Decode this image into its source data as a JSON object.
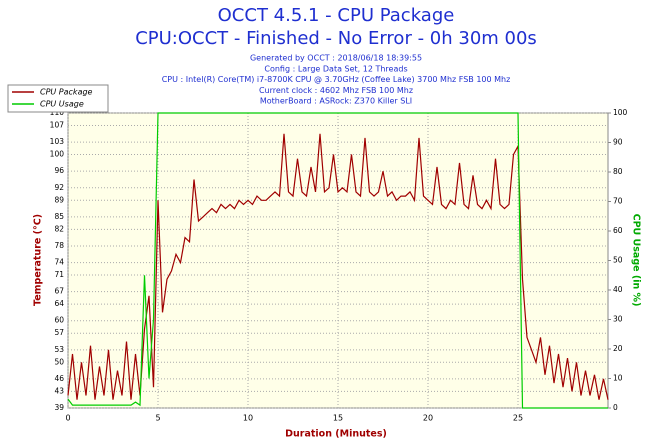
{
  "chart_data": {
    "type": "line",
    "title": "OCCT 4.5.1 - CPU Package",
    "subtitle": "CPU:OCCT - Finished - No Error - 0h 30m 00s",
    "annotations": [
      "Generated by OCCT : 2018/06/18 18:39:55",
      "Config : Large Data Set, 12 Threads",
      "CPU : Intel(R) Core(TM) i7-8700K CPU @ 3.70GHz (Coffee Lake) 3700 Mhz FSB 100 Mhz",
      "Current clock : 4602 Mhz FSB 100 Mhz",
      "MotherBoard : ASRock: Z370 Killer SLI"
    ],
    "x_label": "Duration (Minutes)",
    "y_label": "Temperature (°C)",
    "y2_label": "CPU Usage (in %)",
    "xlim": [
      0,
      30
    ],
    "xticks": [
      0,
      5,
      10,
      15,
      20,
      25
    ],
    "ylim": [
      39,
      110
    ],
    "yticks": [
      39,
      43,
      46,
      50,
      53,
      57,
      60,
      64,
      67,
      71,
      74,
      78,
      82,
      85,
      89,
      92,
      96,
      100,
      103,
      107,
      110
    ],
    "y2lim": [
      0,
      100
    ],
    "y2ticks": [
      0,
      10,
      20,
      30,
      40,
      50,
      60,
      70,
      80,
      90,
      100
    ],
    "grid": true,
    "legend": "top-left",
    "x": [
      0,
      0.25,
      0.5,
      0.75,
      1,
      1.25,
      1.5,
      1.75,
      2,
      2.25,
      2.5,
      2.75,
      3,
      3.25,
      3.5,
      3.75,
      4,
      4.25,
      4.5,
      4.75,
      5,
      5.25,
      5.5,
      5.75,
      6,
      6.25,
      6.5,
      6.75,
      7,
      7.25,
      7.5,
      7.75,
      8,
      8.25,
      8.5,
      8.75,
      9,
      9.25,
      9.5,
      9.75,
      10,
      10.25,
      10.5,
      10.75,
      11,
      11.25,
      11.5,
      11.75,
      12,
      12.25,
      12.5,
      12.75,
      13,
      13.25,
      13.5,
      13.75,
      14,
      14.25,
      14.5,
      14.75,
      15,
      15.25,
      15.5,
      15.75,
      16,
      16.25,
      16.5,
      16.75,
      17,
      17.25,
      17.5,
      17.75,
      18,
      18.25,
      18.5,
      18.75,
      19,
      19.25,
      19.5,
      19.75,
      20,
      20.25,
      20.5,
      20.75,
      21,
      21.25,
      21.5,
      21.75,
      22,
      22.25,
      22.5,
      22.75,
      23,
      23.25,
      23.5,
      23.75,
      24,
      24.25,
      24.5,
      24.75,
      25,
      25.25,
      25.5,
      25.75,
      26,
      26.25,
      26.5,
      26.75,
      27,
      27.25,
      27.5,
      27.75,
      28,
      28.25,
      28.5,
      28.75,
      29,
      29.25,
      29.5,
      29.75,
      30
    ],
    "series": [
      {
        "name": "CPU Package",
        "color": "#a00000",
        "values": [
          42,
          52,
          41,
          50,
          42,
          54,
          41,
          49,
          42,
          53,
          41,
          48,
          42,
          55,
          41,
          52,
          42,
          58,
          66,
          44,
          89,
          62,
          70,
          72,
          76,
          74,
          80,
          79,
          94,
          84,
          85,
          86,
          87,
          86,
          88,
          87,
          88,
          87,
          89,
          88,
          89,
          88,
          90,
          89,
          89,
          90,
          91,
          90,
          105,
          91,
          90,
          99,
          91,
          90,
          97,
          91,
          105,
          91,
          92,
          100,
          91,
          92,
          91,
          100,
          91,
          90,
          104,
          91,
          90,
          91,
          96,
          90,
          91,
          89,
          90,
          90,
          91,
          89,
          104,
          90,
          89,
          88,
          97,
          88,
          87,
          89,
          88,
          98,
          88,
          87,
          95,
          88,
          87,
          89,
          87,
          99,
          88,
          87,
          88,
          100,
          102,
          70,
          56,
          53,
          50,
          56,
          47,
          54,
          45,
          52,
          44,
          51,
          43,
          50,
          42,
          48,
          42,
          47,
          41,
          46,
          41
        ]
      },
      {
        "name": "CPU Usage",
        "color": "#00cc00",
        "axis": "y2",
        "values": [
          3,
          1,
          1,
          1,
          1,
          1,
          1,
          1,
          1,
          1,
          1,
          1,
          1,
          1,
          1,
          2,
          1,
          45,
          10,
          30,
          100,
          100,
          100,
          100,
          100,
          100,
          100,
          100,
          100,
          100,
          100,
          100,
          100,
          100,
          100,
          100,
          100,
          100,
          100,
          100,
          100,
          100,
          100,
          100,
          100,
          100,
          100,
          100,
          100,
          100,
          100,
          100,
          100,
          100,
          100,
          100,
          100,
          100,
          100,
          100,
          100,
          100,
          100,
          100,
          100,
          100,
          100,
          100,
          100,
          100,
          100,
          100,
          100,
          100,
          100,
          100,
          100,
          100,
          100,
          100,
          100,
          100,
          100,
          100,
          100,
          100,
          100,
          100,
          100,
          100,
          100,
          100,
          100,
          100,
          100,
          100,
          100,
          100,
          100,
          100,
          100,
          0,
          0,
          0,
          0,
          0,
          0,
          0,
          0,
          0,
          0,
          0,
          0,
          0,
          0,
          0,
          0,
          0,
          0,
          0,
          0
        ]
      }
    ]
  }
}
